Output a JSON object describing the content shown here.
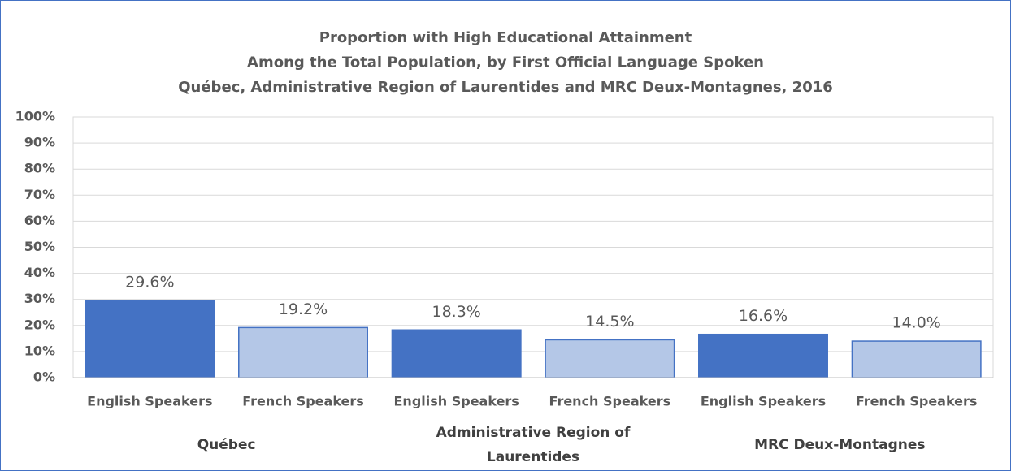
{
  "chart_data": {
    "type": "bar",
    "title": [
      "Proportion with High Educational Attainment",
      "Among the Total Population, by First Official Language Spoken",
      "Québec, Administrative Region of Laurentides and MRC Deux-Montagnes, 2016"
    ],
    "categories": [
      "English Speakers",
      "French Speakers",
      "English Speakers",
      "French Speakers",
      "English Speakers",
      "French Speakers"
    ],
    "groups": [
      "Québec",
      "Administrative Region of Laurentides",
      "MRC Deux-Montagnes"
    ],
    "values": [
      29.6,
      19.2,
      18.3,
      14.5,
      16.6,
      14.0
    ],
    "value_labels": [
      "29.6%",
      "19.2%",
      "18.3%",
      "14.5%",
      "16.6%",
      "14.0%"
    ],
    "colors": [
      "#4472c4",
      "#b4c7e7",
      "#4472c4",
      "#b4c7e7",
      "#4472c4",
      "#b4c7e7"
    ],
    "ylim": [
      0,
      100
    ],
    "yticks": [
      {
        "value": 0,
        "label": "0%"
      },
      {
        "value": 10,
        "label": "10%"
      },
      {
        "value": 20,
        "label": "20%"
      },
      {
        "value": 30,
        "label": "30%"
      },
      {
        "value": 40,
        "label": "40%"
      },
      {
        "value": 50,
        "label": "50%"
      },
      {
        "value": 60,
        "label": "60%"
      },
      {
        "value": 70,
        "label": "70%"
      },
      {
        "value": 80,
        "label": "80%"
      },
      {
        "value": 90,
        "label": "90%"
      },
      {
        "value": 100,
        "label": "100%"
      }
    ],
    "grid": true
  }
}
